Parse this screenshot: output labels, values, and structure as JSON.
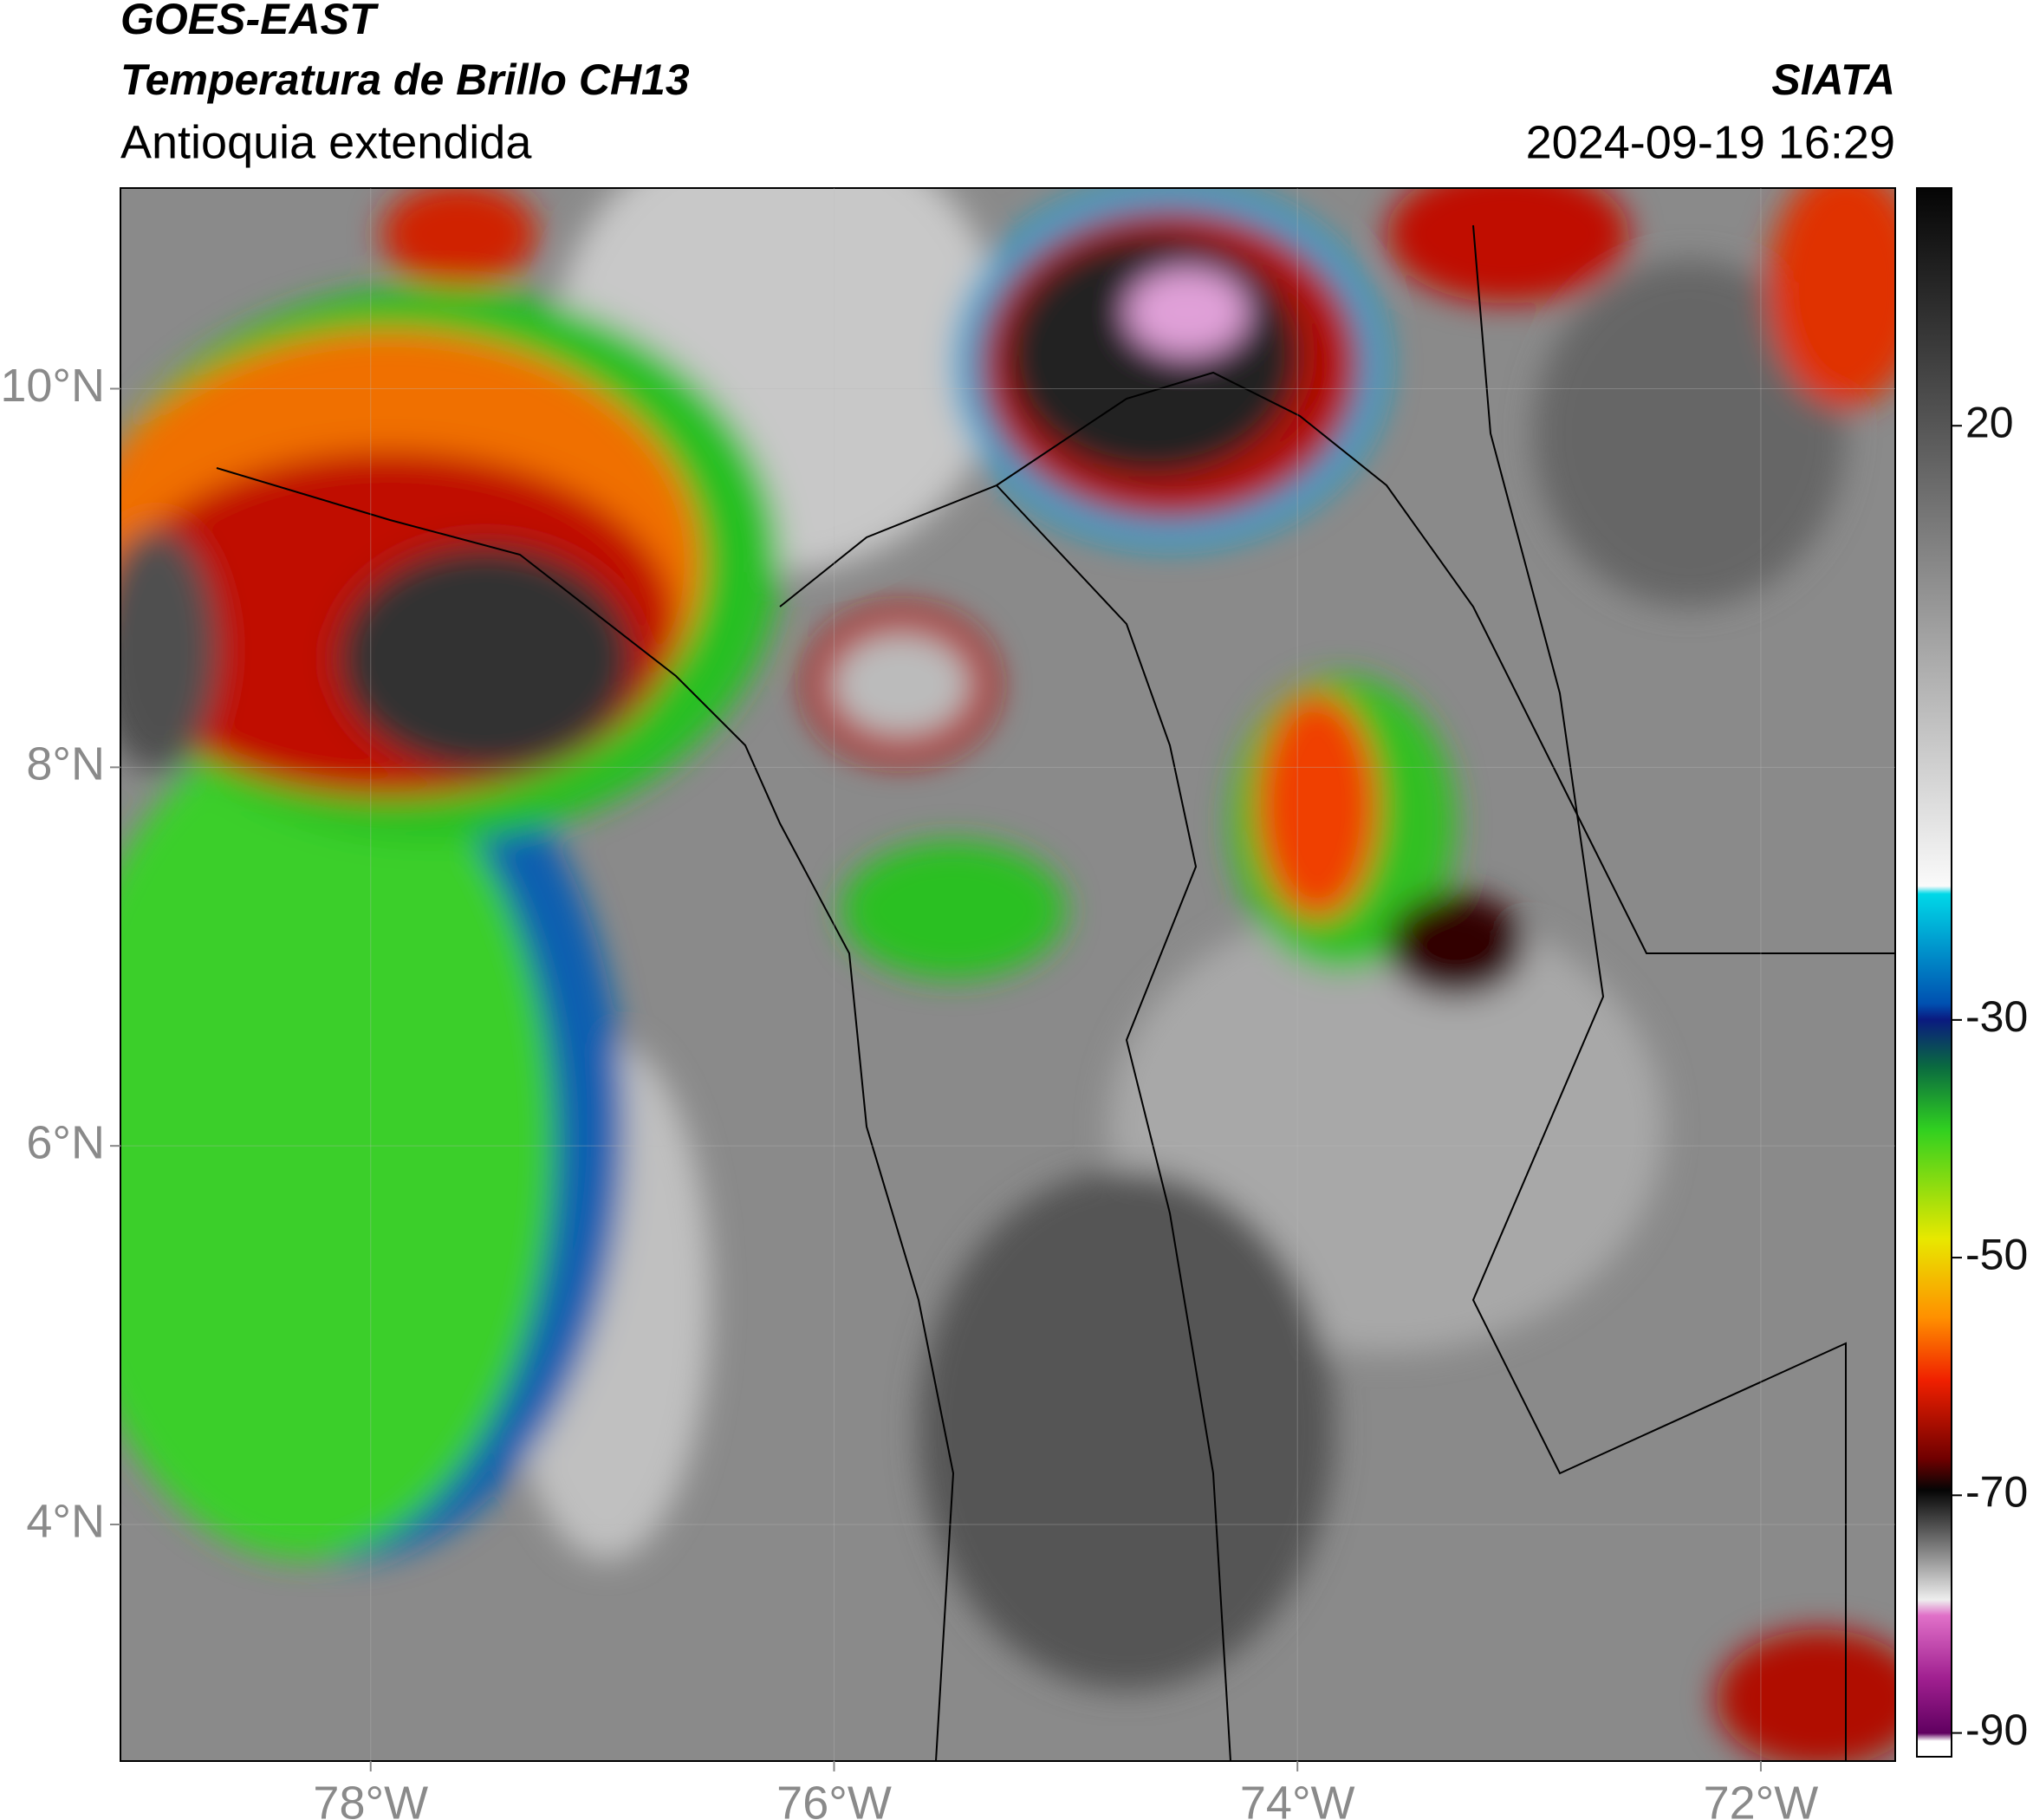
{
  "header": {
    "title_line1": "GOES-EAST",
    "title_line2": "Temperatura de Brillo CH13",
    "subtitle": "Antioquia extendida",
    "source": "SIATA",
    "timestamp": "2024-09-19 16:29"
  },
  "map": {
    "xlim": [
      -79.08,
      -71.42
    ],
    "ylim": [
      2.75,
      11.06
    ],
    "xticks": [
      {
        "value": -78,
        "label": "78°W"
      },
      {
        "value": -76,
        "label": "76°W"
      },
      {
        "value": -74,
        "label": "74°W"
      },
      {
        "value": -72,
        "label": "72°W"
      }
    ],
    "yticks": [
      {
        "value": 10,
        "label": "10°N"
      },
      {
        "value": 8,
        "label": "8°N"
      },
      {
        "value": 6,
        "label": "6°N"
      },
      {
        "value": 4,
        "label": "4°N"
      }
    ]
  },
  "colorbar": {
    "lim": [
      -92,
      40
    ],
    "ticks": [
      20,
      -30,
      -50,
      -70,
      -90
    ]
  }
}
